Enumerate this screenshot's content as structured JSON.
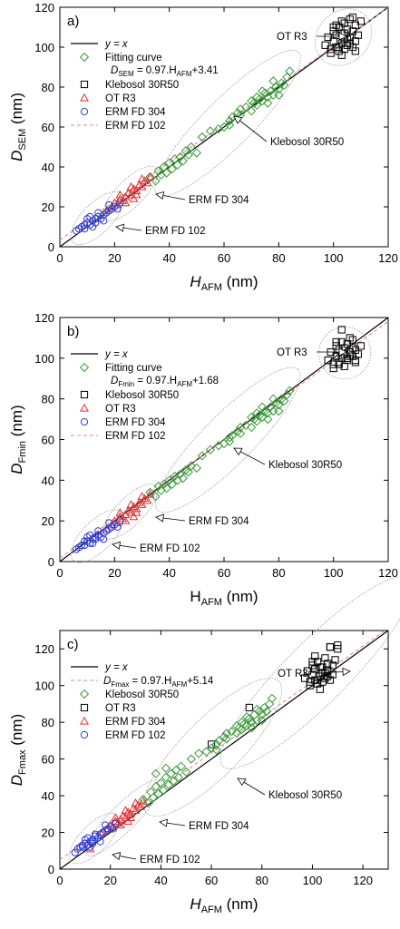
{
  "chart_data": [
    {
      "type": "scatter",
      "panel_label": "a)",
      "ylabel_main": "D",
      "ylabel_sub": "SEM",
      "ylabel_unit": " (nm)",
      "ylabel_italic": true,
      "xlabel_main": "H",
      "xlabel_sub": "AFM",
      "xlabel_unit": " (nm)",
      "xlabel_italic": true,
      "xlim": [
        0,
        120
      ],
      "ylim": [
        0,
        120
      ],
      "xticks": [
        0,
        20,
        40,
        60,
        80,
        100,
        120
      ],
      "yticks": [
        0,
        20,
        40,
        60,
        80,
        100,
        120
      ],
      "equation": {
        "main": "D",
        "sub": "SEM",
        "rest": " = 0.97.H",
        "sub2": "AFM",
        "tail": "+3.41"
      },
      "legend": [
        {
          "kind": "line",
          "color": "#000000",
          "label": "y = x",
          "italic": true
        },
        {
          "kind": "diamond",
          "color": "#3a9a3a",
          "label": "Fitting curve"
        },
        {
          "kind": "equation"
        },
        {
          "kind": "square",
          "color": "#000000",
          "label": "Klebosol 30R50"
        },
        {
          "kind": "triangle",
          "color": "#e53030",
          "label": "OT R3"
        },
        {
          "kind": "circle",
          "color": "#2e3ad0",
          "label": "ERM FD 304"
        },
        {
          "kind": "dash",
          "color": "#e88a8a",
          "label": "ERM FD 102"
        }
      ],
      "fit_line": {
        "slope": 0.97,
        "intercept": 3.41,
        "color": "#e88a8a"
      },
      "annotations": [
        "OT R3",
        "Klebosol 30R50",
        "ERM FD 304",
        "ERM FD 102"
      ],
      "series": [
        {
          "name": "OT R3",
          "marker": "square",
          "color": "#000000",
          "x": [
            97,
            98,
            99,
            100,
            100,
            101,
            101,
            102,
            102,
            103,
            103,
            104,
            104,
            104,
            105,
            105,
            106,
            106,
            107,
            107,
            108,
            108,
            109,
            110,
            99,
            101,
            103,
            105,
            107,
            102,
            104,
            106,
            100,
            108,
            103
          ],
          "y": [
            101,
            105,
            99,
            103,
            108,
            100,
            106,
            98,
            110,
            102,
            107,
            104,
            99,
            112,
            101,
            109,
            105,
            114,
            100,
            108,
            103,
            111,
            106,
            113,
            97,
            111,
            96,
            104,
            115,
            100,
            107,
            102,
            110,
            98,
            113
          ]
        },
        {
          "name": "Klebosol 30R50",
          "marker": "diamond",
          "color": "#3a9a3a",
          "x": [
            33,
            35,
            36,
            37,
            38,
            39,
            40,
            41,
            42,
            43,
            44,
            45,
            46,
            47,
            48,
            50,
            52,
            55,
            58,
            60,
            62,
            63,
            65,
            66,
            68,
            70,
            71,
            72,
            73,
            74,
            75,
            76,
            77,
            78,
            79,
            80,
            81,
            82,
            83,
            84,
            70,
            74,
            78,
            62,
            66,
            80,
            76,
            72
          ],
          "y": [
            35,
            33,
            38,
            36,
            40,
            37,
            42,
            39,
            44,
            41,
            45,
            43,
            48,
            46,
            50,
            47,
            55,
            58,
            59,
            60,
            63,
            65,
            67,
            66,
            70,
            68,
            72,
            71,
            74,
            73,
            77,
            75,
            78,
            76,
            80,
            79,
            82,
            81,
            85,
            88,
            73,
            78,
            83,
            61,
            69,
            76,
            72,
            75
          ]
        },
        {
          "name": "ERM FD 304",
          "marker": "triangle",
          "color": "#e53030",
          "x": [
            17,
            19,
            20,
            21,
            22,
            23,
            24,
            25,
            26,
            27,
            28,
            29,
            30,
            31,
            32,
            33,
            24,
            26,
            28,
            30,
            22,
            27
          ],
          "y": [
            18,
            20,
            22,
            21,
            24,
            23,
            25,
            27,
            26,
            29,
            28,
            31,
            30,
            33,
            32,
            35,
            22,
            30,
            26,
            34,
            26,
            24
          ]
        },
        {
          "name": "ERM FD 102",
          "marker": "circle",
          "color": "#2e3ad0",
          "x": [
            6,
            7,
            8,
            9,
            10,
            11,
            12,
            13,
            14,
            15,
            16,
            17,
            18,
            19,
            20,
            21,
            22,
            10,
            12,
            14,
            16,
            18,
            9,
            13,
            11
          ],
          "y": [
            8,
            9,
            10,
            9,
            12,
            11,
            13,
            14,
            15,
            14,
            16,
            17,
            18,
            19,
            20,
            19,
            22,
            14,
            10,
            17,
            13,
            21,
            11,
            12,
            15
          ]
        }
      ]
    },
    {
      "type": "scatter",
      "panel_label": "b)",
      "ylabel_main": "D",
      "ylabel_sub": "Fmin",
      "ylabel_unit": " (nm)",
      "ylabel_italic": true,
      "xlabel_main": "H",
      "xlabel_sub": "AFM",
      "xlabel_unit": " (nm)",
      "xlabel_italic": false,
      "xlim": [
        0,
        120
      ],
      "ylim": [
        0,
        120
      ],
      "xticks": [
        0,
        20,
        40,
        60,
        80,
        100,
        120
      ],
      "yticks": [
        0,
        20,
        40,
        60,
        80,
        100,
        120
      ],
      "equation": {
        "main": "D",
        "sub": "Fmin",
        "rest": " = 0.97.H",
        "sub2": "AFM",
        "tail": "+1.68"
      },
      "legend": [
        {
          "kind": "line",
          "color": "#000000",
          "label": "y = x",
          "italic": true
        },
        {
          "kind": "diamond",
          "color": "#3a9a3a",
          "label": "Fitting curve"
        },
        {
          "kind": "equation"
        },
        {
          "kind": "square",
          "color": "#000000",
          "label": "Klebosol 30R50"
        },
        {
          "kind": "triangle",
          "color": "#e53030",
          "label": "OT R3"
        },
        {
          "kind": "circle",
          "color": "#2e3ad0",
          "label": "ERM FD 304"
        },
        {
          "kind": "dash",
          "color": "#e88a8a",
          "label": "ERM FD 102"
        }
      ],
      "fit_line": {
        "slope": 0.97,
        "intercept": 1.68,
        "color": "#e88a8a"
      },
      "annotations": [
        "OT R3",
        "Klebosol 30R50",
        "ERM FD 304",
        "ERM FD 102"
      ],
      "series": [
        {
          "name": "OT R3",
          "marker": "square",
          "color": "#000000",
          "x": [
            98,
            99,
            100,
            101,
            101,
            102,
            102,
            103,
            103,
            104,
            104,
            105,
            105,
            106,
            106,
            107,
            107,
            108,
            108,
            109,
            110,
            100,
            103,
            105,
            107,
            102,
            104,
            106,
            101,
            108
          ],
          "y": [
            99,
            103,
            97,
            101,
            106,
            98,
            104,
            100,
            108,
            96,
            102,
            99,
            107,
            103,
            110,
            101,
            105,
            98,
            104,
            102,
            106,
            95,
            114,
            100,
            109,
            97,
            105,
            101,
            108,
            99
          ]
        },
        {
          "name": "Klebosol 30R50",
          "marker": "diamond",
          "color": "#3a9a3a",
          "x": [
            33,
            35,
            36,
            37,
            38,
            39,
            40,
            41,
            42,
            43,
            44,
            45,
            46,
            47,
            48,
            50,
            52,
            55,
            58,
            60,
            62,
            63,
            65,
            66,
            68,
            70,
            71,
            72,
            73,
            74,
            75,
            76,
            77,
            78,
            79,
            80,
            81,
            82,
            83,
            84,
            70,
            74,
            78,
            62,
            66,
            80,
            76,
            72
          ],
          "y": [
            34,
            32,
            37,
            35,
            38,
            36,
            40,
            38,
            42,
            40,
            43,
            41,
            45,
            44,
            47,
            46,
            52,
            55,
            57,
            58,
            61,
            62,
            64,
            63,
            67,
            66,
            70,
            69,
            72,
            71,
            74,
            73,
            76,
            74,
            78,
            77,
            80,
            79,
            82,
            84,
            71,
            76,
            80,
            59,
            66,
            74,
            70,
            73
          ]
        },
        {
          "name": "ERM FD 304",
          "marker": "triangle",
          "color": "#e53030",
          "x": [
            17,
            19,
            20,
            21,
            22,
            23,
            24,
            25,
            26,
            27,
            28,
            29,
            30,
            31,
            32,
            33,
            24,
            26,
            28,
            30,
            22,
            27
          ],
          "y": [
            16,
            18,
            20,
            19,
            22,
            21,
            23,
            25,
            24,
            27,
            26,
            29,
            28,
            31,
            30,
            33,
            20,
            28,
            24,
            32,
            24,
            22
          ]
        },
        {
          "name": "ERM FD 102",
          "marker": "circle",
          "color": "#2e3ad0",
          "x": [
            6,
            7,
            8,
            9,
            10,
            11,
            12,
            13,
            14,
            15,
            16,
            17,
            18,
            19,
            20,
            21,
            22,
            10,
            12,
            14,
            16,
            18,
            9,
            13,
            11
          ],
          "y": [
            6,
            7,
            8,
            8,
            10,
            9,
            11,
            12,
            13,
            12,
            14,
            15,
            16,
            17,
            18,
            17,
            20,
            12,
            9,
            15,
            11,
            19,
            10,
            11,
            13
          ]
        }
      ]
    },
    {
      "type": "scatter",
      "panel_label": "c)",
      "ylabel_main": "D",
      "ylabel_sub": "Fmax",
      "ylabel_unit": " (nm)",
      "ylabel_italic": true,
      "xlabel_main": "H",
      "xlabel_sub": "AFM",
      "xlabel_unit": " (nm)",
      "xlabel_italic": true,
      "xlim": [
        0,
        130
      ],
      "ylim": [
        0,
        130
      ],
      "xticks": [
        0,
        20,
        40,
        60,
        80,
        100,
        120
      ],
      "yticks": [
        0,
        20,
        40,
        60,
        80,
        100,
        120
      ],
      "equation": {
        "main": "D",
        "sub": "Fmax",
        "rest": " = 0.97.H",
        "sub2": "AFM",
        "tail": "+5.14"
      },
      "legend": [
        {
          "kind": "line",
          "color": "#000000",
          "label": "y = x",
          "italic": true
        },
        {
          "kind": "dashEq",
          "color": "#e88a8a"
        },
        {
          "kind": "diamond",
          "color": "#3a9a3a",
          "label": "Klebosol 30R50"
        },
        {
          "kind": "square",
          "color": "#000000",
          "label": "OT R3"
        },
        {
          "kind": "triangle",
          "color": "#e53030",
          "label": "ERM FD 304"
        },
        {
          "kind": "circle",
          "color": "#2e3ad0",
          "label": "ERM FD 102"
        }
      ],
      "fit_line": {
        "slope": 0.97,
        "intercept": 5.14,
        "color": "#e88a8a"
      },
      "annotations": [
        "OT R3",
        "Klebosol 30R50",
        "ERM FD 304",
        "ERM FD 102"
      ],
      "series": [
        {
          "name": "OT R3",
          "marker": "square",
          "color": "#000000",
          "x": [
            97,
            98,
            99,
            100,
            100,
            101,
            101,
            102,
            102,
            103,
            103,
            104,
            104,
            105,
            105,
            106,
            106,
            107,
            107,
            108,
            108,
            109,
            110,
            99,
            101,
            103,
            105,
            107,
            102,
            104,
            106,
            100,
            75,
            60,
            110
          ],
          "y": [
            104,
            108,
            102,
            106,
            111,
            103,
            109,
            101,
            113,
            105,
            110,
            107,
            102,
            115,
            104,
            112,
            108,
            121,
            103,
            111,
            106,
            114,
            120,
            100,
            116,
            98,
            107,
            121,
            103,
            110,
            105,
            113,
            88,
            68,
            122
          ]
        },
        {
          "name": "Klebosol 30R50",
          "marker": "diamond",
          "color": "#3a9a3a",
          "x": [
            33,
            35,
            36,
            37,
            38,
            39,
            40,
            41,
            42,
            43,
            44,
            45,
            46,
            47,
            48,
            50,
            52,
            55,
            58,
            60,
            62,
            63,
            65,
            66,
            68,
            70,
            71,
            72,
            73,
            74,
            75,
            76,
            77,
            78,
            79,
            80,
            81,
            82,
            83,
            84,
            70,
            74,
            78,
            62,
            66,
            80,
            76,
            72,
            38,
            42
          ],
          "y": [
            38,
            36,
            42,
            39,
            45,
            41,
            47,
            43,
            50,
            46,
            52,
            48,
            54,
            50,
            56,
            53,
            60,
            63,
            64,
            66,
            68,
            70,
            72,
            71,
            75,
            74,
            77,
            76,
            79,
            78,
            82,
            80,
            84,
            81,
            86,
            84,
            88,
            86,
            90,
            93,
            78,
            83,
            87,
            65,
            74,
            81,
            77,
            80,
            52,
            55
          ]
        },
        {
          "name": "ERM FD 304",
          "marker": "triangle",
          "color": "#e53030",
          "x": [
            17,
            19,
            20,
            21,
            22,
            23,
            24,
            25,
            26,
            27,
            28,
            29,
            30,
            31,
            32,
            33,
            24,
            26,
            28,
            30,
            22,
            27,
            12
          ],
          "y": [
            20,
            22,
            24,
            23,
            26,
            25,
            27,
            29,
            28,
            31,
            30,
            33,
            32,
            35,
            34,
            37,
            24,
            32,
            28,
            36,
            28,
            26,
            11
          ]
        },
        {
          "name": "ERM FD 102",
          "marker": "circle",
          "color": "#2e3ad0",
          "x": [
            6,
            7,
            8,
            9,
            10,
            11,
            12,
            13,
            14,
            15,
            16,
            17,
            18,
            19,
            20,
            21,
            22,
            10,
            12,
            14,
            16,
            18,
            9,
            13,
            11
          ],
          "y": [
            9,
            11,
            12,
            12,
            14,
            13,
            15,
            16,
            18,
            17,
            19,
            20,
            21,
            22,
            23,
            22,
            25,
            16,
            12,
            19,
            15,
            24,
            13,
            14,
            17
          ]
        }
      ]
    }
  ]
}
